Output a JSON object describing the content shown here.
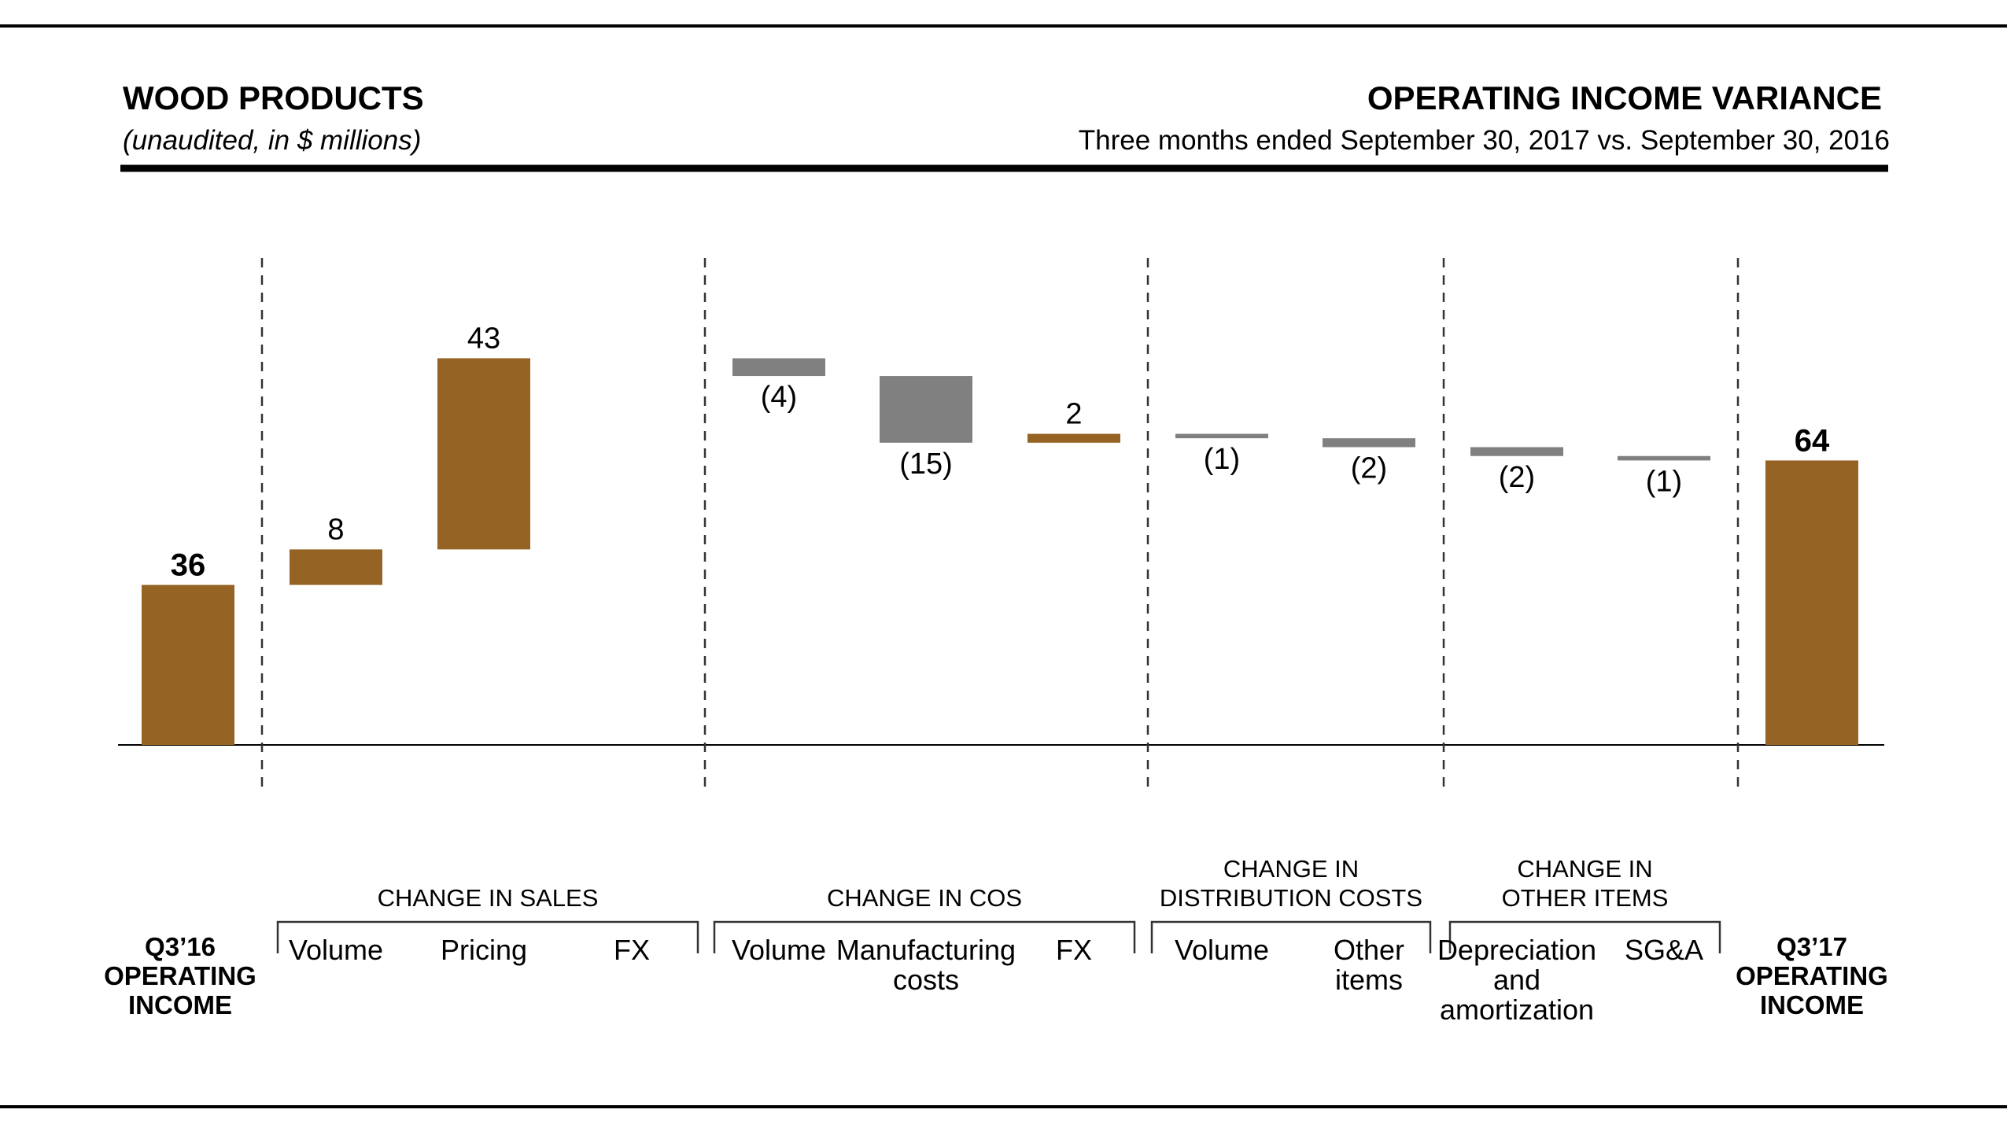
{
  "header": {
    "left_title": "WOOD PRODUCTS",
    "left_subtitle": "(unaudited, in $ millions)",
    "right_title": "OPERATING INCOME VARIANCE",
    "right_subtitle": "Three months ended September 30, 2017 vs. September 30, 2016"
  },
  "colors": {
    "positive": "#956323",
    "negative": "#808080",
    "rule": "#000000"
  },
  "groups": [
    {
      "title": [
        "CHANGE IN SALES"
      ]
    },
    {
      "title": [
        "CHANGE IN COS"
      ]
    },
    {
      "title": [
        "CHANGE IN",
        "DISTRIBUTION COSTS"
      ]
    },
    {
      "title": [
        "CHANGE IN",
        "OTHER ITEMS"
      ]
    }
  ],
  "chart_data": {
    "type": "bar",
    "subtype": "waterfall",
    "start": {
      "label": [
        "Q3’16",
        "OPERATING",
        "INCOME"
      ],
      "value": 36,
      "value_label": "36"
    },
    "end": {
      "label": [
        "Q3’17",
        "OPERATING",
        "INCOME"
      ],
      "value": 64,
      "value_label": "64"
    },
    "steps": [
      {
        "group": 0,
        "label": [
          "Volume"
        ],
        "value": 8,
        "value_label": "8"
      },
      {
        "group": 0,
        "label": [
          "Pricing"
        ],
        "value": 43,
        "value_label": "43"
      },
      {
        "group": 0,
        "label": [
          "FX"
        ],
        "value": 0,
        "value_label": ""
      },
      {
        "group": 1,
        "label": [
          "Volume"
        ],
        "value": -4,
        "value_label": "(4)"
      },
      {
        "group": 1,
        "label": [
          "Manufacturing",
          "costs"
        ],
        "value": -15,
        "value_label": "(15)"
      },
      {
        "group": 1,
        "label": [
          "FX"
        ],
        "value": 2,
        "value_label": "2"
      },
      {
        "group": 2,
        "label": [
          "Volume"
        ],
        "value": -1,
        "value_label": "(1)"
      },
      {
        "group": 2,
        "label": [
          "Other",
          "items"
        ],
        "value": -2,
        "value_label": "(2)"
      },
      {
        "group": 3,
        "label": [
          "Depreciation",
          "and",
          "amortization"
        ],
        "value": -2,
        "value_label": "(2)"
      },
      {
        "group": 3,
        "label": [
          "SG&A"
        ],
        "value": -1,
        "value_label": "(1)"
      }
    ],
    "xlabel": "",
    "ylabel": "",
    "grid": false,
    "legend": "none"
  }
}
